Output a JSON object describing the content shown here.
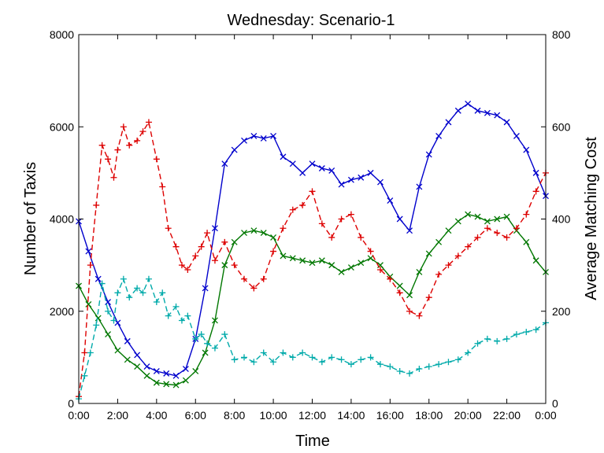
{
  "chart_data": {
    "type": "line",
    "title": "Wednesday: Scenario-1",
    "xlabel": "Time",
    "ylabel_left": "Number of Taxis",
    "ylabel_right": "Average Matching Cost",
    "xlim": [
      0,
      24
    ],
    "ylim_left": [
      0,
      8000
    ],
    "ylim_right": [
      0,
      800
    ],
    "x_ticks": [
      0,
      2,
      4,
      6,
      8,
      10,
      12,
      14,
      16,
      18,
      20,
      22,
      24
    ],
    "x_tick_labels": [
      "0:00",
      "2:00",
      "4:00",
      "6:00",
      "8:00",
      "10:00",
      "12:00",
      "14:00",
      "16:00",
      "18:00",
      "20:00",
      "22:00",
      "0:00"
    ],
    "y_left_ticks": [
      0,
      2000,
      4000,
      6000,
      8000
    ],
    "y_left_tick_labels": [
      "0",
      "2000",
      "4000",
      "6000",
      "8000"
    ],
    "y_right_ticks": [
      0,
      200,
      400,
      600,
      800
    ],
    "y_right_tick_labels": [
      "0",
      "200",
      "400",
      "600",
      "800"
    ],
    "series": [
      {
        "name": "Number of Taxis (blue)",
        "axis": "left",
        "color": "#0000cc",
        "dash": "solid",
        "marker": "x",
        "points": [
          [
            0,
            3950
          ],
          [
            0.5,
            3300
          ],
          [
            1,
            2700
          ],
          [
            1.5,
            2200
          ],
          [
            2,
            1750
          ],
          [
            2.5,
            1350
          ],
          [
            3,
            1050
          ],
          [
            3.5,
            800
          ],
          [
            4,
            700
          ],
          [
            4.5,
            650
          ],
          [
            5,
            600
          ],
          [
            5.5,
            750
          ],
          [
            6,
            1400
          ],
          [
            6.5,
            2500
          ],
          [
            7,
            3800
          ],
          [
            7.5,
            5200
          ],
          [
            8,
            5500
          ],
          [
            8.5,
            5700
          ],
          [
            9,
            5800
          ],
          [
            9.5,
            5750
          ],
          [
            10,
            5800
          ],
          [
            10.5,
            5350
          ],
          [
            11,
            5200
          ],
          [
            11.5,
            5000
          ],
          [
            12,
            5200
          ],
          [
            12.5,
            5100
          ],
          [
            13,
            5050
          ],
          [
            13.5,
            4750
          ],
          [
            14,
            4850
          ],
          [
            14.5,
            4900
          ],
          [
            15,
            5000
          ],
          [
            15.5,
            4800
          ],
          [
            16,
            4400
          ],
          [
            16.5,
            4000
          ],
          [
            17,
            3750
          ],
          [
            17.5,
            4700
          ],
          [
            18,
            5400
          ],
          [
            18.5,
            5800
          ],
          [
            19,
            6100
          ],
          [
            19.5,
            6350
          ],
          [
            20,
            6500
          ],
          [
            20.5,
            6350
          ],
          [
            21,
            6300
          ],
          [
            21.5,
            6250
          ],
          [
            22,
            6100
          ],
          [
            22.5,
            5800
          ],
          [
            23,
            5500
          ],
          [
            23.5,
            5000
          ],
          [
            24,
            4500
          ]
        ]
      },
      {
        "name": "Number of Taxis (green)",
        "axis": "left",
        "color": "#007700",
        "dash": "solid",
        "marker": "x",
        "points": [
          [
            0,
            2550
          ],
          [
            0.5,
            2150
          ],
          [
            1,
            1850
          ],
          [
            1.5,
            1500
          ],
          [
            2,
            1150
          ],
          [
            2.5,
            950
          ],
          [
            3,
            800
          ],
          [
            3.5,
            600
          ],
          [
            4,
            450
          ],
          [
            4.5,
            420
          ],
          [
            5,
            400
          ],
          [
            5.5,
            500
          ],
          [
            6,
            700
          ],
          [
            6.5,
            1100
          ],
          [
            7,
            1800
          ],
          [
            7.5,
            3000
          ],
          [
            8,
            3500
          ],
          [
            8.5,
            3700
          ],
          [
            9,
            3750
          ],
          [
            9.5,
            3700
          ],
          [
            10,
            3600
          ],
          [
            10.5,
            3200
          ],
          [
            11,
            3150
          ],
          [
            11.5,
            3100
          ],
          [
            12,
            3050
          ],
          [
            12.5,
            3100
          ],
          [
            13,
            3000
          ],
          [
            13.5,
            2850
          ],
          [
            14,
            2950
          ],
          [
            14.5,
            3050
          ],
          [
            15,
            3150
          ],
          [
            15.5,
            3000
          ],
          [
            16,
            2750
          ],
          [
            16.5,
            2550
          ],
          [
            17,
            2350
          ],
          [
            17.5,
            2850
          ],
          [
            18,
            3250
          ],
          [
            18.5,
            3500
          ],
          [
            19,
            3750
          ],
          [
            19.5,
            3950
          ],
          [
            20,
            4100
          ],
          [
            20.5,
            4050
          ],
          [
            21,
            3950
          ],
          [
            21.5,
            4000
          ],
          [
            22,
            4050
          ],
          [
            22.5,
            3750
          ],
          [
            23,
            3500
          ],
          [
            23.5,
            3100
          ],
          [
            24,
            2850
          ]
        ]
      },
      {
        "name": "Average Matching Cost (red)",
        "axis": "right",
        "color": "#dd0000",
        "dash": "dashed",
        "marker": "+",
        "points": [
          [
            0,
            15
          ],
          [
            0.3,
            110
          ],
          [
            0.6,
            300
          ],
          [
            0.9,
            430
          ],
          [
            1.2,
            560
          ],
          [
            1.5,
            530
          ],
          [
            1.8,
            490
          ],
          [
            2,
            550
          ],
          [
            2.3,
            600
          ],
          [
            2.6,
            560
          ],
          [
            3,
            570
          ],
          [
            3.3,
            590
          ],
          [
            3.6,
            610
          ],
          [
            4,
            530
          ],
          [
            4.3,
            470
          ],
          [
            4.6,
            380
          ],
          [
            5,
            340
          ],
          [
            5.3,
            300
          ],
          [
            5.6,
            290
          ],
          [
            6,
            320
          ],
          [
            6.3,
            340
          ],
          [
            6.6,
            370
          ],
          [
            7,
            310
          ],
          [
            7.5,
            350
          ],
          [
            8,
            300
          ],
          [
            8.5,
            270
          ],
          [
            9,
            250
          ],
          [
            9.5,
            270
          ],
          [
            10,
            330
          ],
          [
            10.5,
            380
          ],
          [
            11,
            420
          ],
          [
            11.5,
            430
          ],
          [
            12,
            460
          ],
          [
            12.5,
            390
          ],
          [
            13,
            360
          ],
          [
            13.5,
            400
          ],
          [
            14,
            410
          ],
          [
            14.5,
            360
          ],
          [
            15,
            330
          ],
          [
            15.5,
            290
          ],
          [
            16,
            270
          ],
          [
            16.5,
            240
          ],
          [
            17,
            200
          ],
          [
            17.5,
            190
          ],
          [
            18,
            230
          ],
          [
            18.5,
            280
          ],
          [
            19,
            300
          ],
          [
            19.5,
            320
          ],
          [
            20,
            340
          ],
          [
            20.5,
            360
          ],
          [
            21,
            380
          ],
          [
            21.5,
            370
          ],
          [
            22,
            360
          ],
          [
            22.5,
            380
          ],
          [
            23,
            410
          ],
          [
            23.5,
            460
          ],
          [
            24,
            500
          ]
        ]
      },
      {
        "name": "Average Matching Cost (cyan)",
        "axis": "right",
        "color": "#00aaaa",
        "dash": "dashed",
        "marker": "+",
        "points": [
          [
            0,
            10
          ],
          [
            0.3,
            60
          ],
          [
            0.6,
            110
          ],
          [
            0.9,
            170
          ],
          [
            1.2,
            260
          ],
          [
            1.5,
            200
          ],
          [
            1.8,
            180
          ],
          [
            2,
            240
          ],
          [
            2.3,
            270
          ],
          [
            2.6,
            230
          ],
          [
            3,
            250
          ],
          [
            3.3,
            240
          ],
          [
            3.6,
            270
          ],
          [
            4,
            220
          ],
          [
            4.3,
            240
          ],
          [
            4.6,
            190
          ],
          [
            5,
            210
          ],
          [
            5.3,
            180
          ],
          [
            5.6,
            190
          ],
          [
            6,
            140
          ],
          [
            6.3,
            150
          ],
          [
            6.6,
            130
          ],
          [
            7,
            120
          ],
          [
            7.5,
            150
          ],
          [
            8,
            95
          ],
          [
            8.5,
            100
          ],
          [
            9,
            90
          ],
          [
            9.5,
            110
          ],
          [
            10,
            90
          ],
          [
            10.5,
            110
          ],
          [
            11,
            100
          ],
          [
            11.5,
            110
          ],
          [
            12,
            100
          ],
          [
            12.5,
            90
          ],
          [
            13,
            100
          ],
          [
            13.5,
            95
          ],
          [
            14,
            85
          ],
          [
            14.5,
            95
          ],
          [
            15,
            100
          ],
          [
            15.5,
            85
          ],
          [
            16,
            80
          ],
          [
            16.5,
            70
          ],
          [
            17,
            65
          ],
          [
            17.5,
            75
          ],
          [
            18,
            80
          ],
          [
            18.5,
            85
          ],
          [
            19,
            90
          ],
          [
            19.5,
            95
          ],
          [
            20,
            110
          ],
          [
            20.5,
            130
          ],
          [
            21,
            140
          ],
          [
            21.5,
            135
          ],
          [
            22,
            140
          ],
          [
            22.5,
            150
          ],
          [
            23,
            155
          ],
          [
            23.5,
            160
          ],
          [
            24,
            175
          ]
        ]
      }
    ]
  }
}
